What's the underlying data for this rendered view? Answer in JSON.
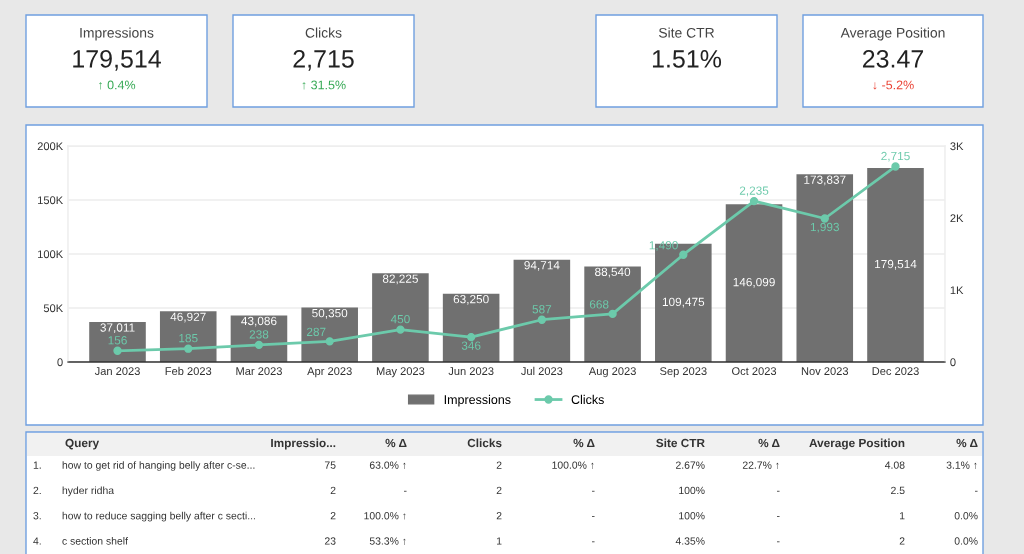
{
  "chart_data": [
    {
      "type": "other",
      "title": "Impressions",
      "annotations": [
        "179,514",
        "↑ 0.4%"
      ],
      "color": "#34a853"
    },
    {
      "type": "other",
      "title": "Clicks",
      "annotations": [
        "2,715",
        "↑ 31.5%"
      ],
      "color": "#34a853"
    },
    {
      "type": "other",
      "title": "Site CTR",
      "annotations": [
        "1.51%"
      ]
    },
    {
      "type": "other",
      "title": "Average Position",
      "annotations": [
        "23.47",
        "↓ -5.2%"
      ],
      "color": "#ea4335"
    },
    {
      "type": "bar",
      "categories": [
        "Jan 2023",
        "Feb 2023",
        "Mar 2023",
        "Apr 2023",
        "May 2023",
        "Jun 2023",
        "Jul 2023",
        "Aug 2023",
        "Sep 2023",
        "Oct 2023",
        "Nov 2023",
        "Dec 2023"
      ],
      "series": [
        {
          "name": "Impressions",
          "type": "bar",
          "color": "#707070",
          "values": [
            37011,
            46927,
            43086,
            50350,
            82225,
            63250,
            94714,
            88540,
            109475,
            146099,
            173837,
            179514
          ],
          "value_labels": [
            "37,011",
            "46,927",
            "43,086",
            "50,350",
            "82,225",
            "63,250",
            "94,714",
            "88,540",
            "109,475",
            "146,099",
            "173,837",
            "179,514"
          ]
        },
        {
          "name": "Clicks",
          "type": "line",
          "axis": "y2",
          "color": "#6ccaab",
          "values": [
            156,
            185,
            238,
            287,
            450,
            346,
            587,
            668,
            1490,
            2235,
            1993,
            2715
          ],
          "value_labels": [
            "156",
            "185",
            "238",
            "287",
            "450",
            "346",
            "587",
            "668",
            "1,490",
            "2,235",
            "1,993",
            "2,715"
          ]
        }
      ],
      "ylim": [
        0,
        200000
      ],
      "yticks": [
        0,
        {
          "value": 50000,
          "label": "50K"
        },
        {
          "value": 100000,
          "label": "100K"
        },
        {
          "value": 150000,
          "label": "150K"
        },
        {
          "value": 200000,
          "label": "200K"
        }
      ],
      "y2lim": [
        0,
        3000
      ],
      "y2ticks": [
        0,
        {
          "value": 1000,
          "label": "1K"
        },
        {
          "value": 2000,
          "label": "2K"
        },
        {
          "value": 3000,
          "label": "3K"
        }
      ],
      "grid": "y",
      "legend": "bottom",
      "marker": "circle"
    },
    {
      "type": "other",
      "categories": [
        null,
        "Query",
        "Impressio...",
        "% Δ",
        "Clicks",
        "% Δ",
        "Site CTR",
        "% Δ",
        "Average Position",
        "% Δ"
      ],
      "annotations": [
        "1.",
        "how to get rid of hanging belly after c-se...",
        "75",
        "63.0% ↑",
        "2",
        "100.0% ↑",
        "2.67%",
        "22.7% ↑",
        "4.08",
        "3.1% ↑",
        "2.",
        "hyder ridha",
        "2",
        "-",
        "2",
        "-",
        "100%",
        "-",
        "2.5",
        "-",
        "3.",
        "how to reduce sagging belly after c secti...",
        "2",
        "100.0% ↑",
        "2",
        "-",
        "100%",
        "-",
        "1",
        "0.0%",
        "4.",
        "c section shelf",
        "23",
        "53.3% ↑",
        "1",
        "-",
        "4.35%",
        "-",
        "2",
        "0.0%"
      ]
    }
  ]
}
